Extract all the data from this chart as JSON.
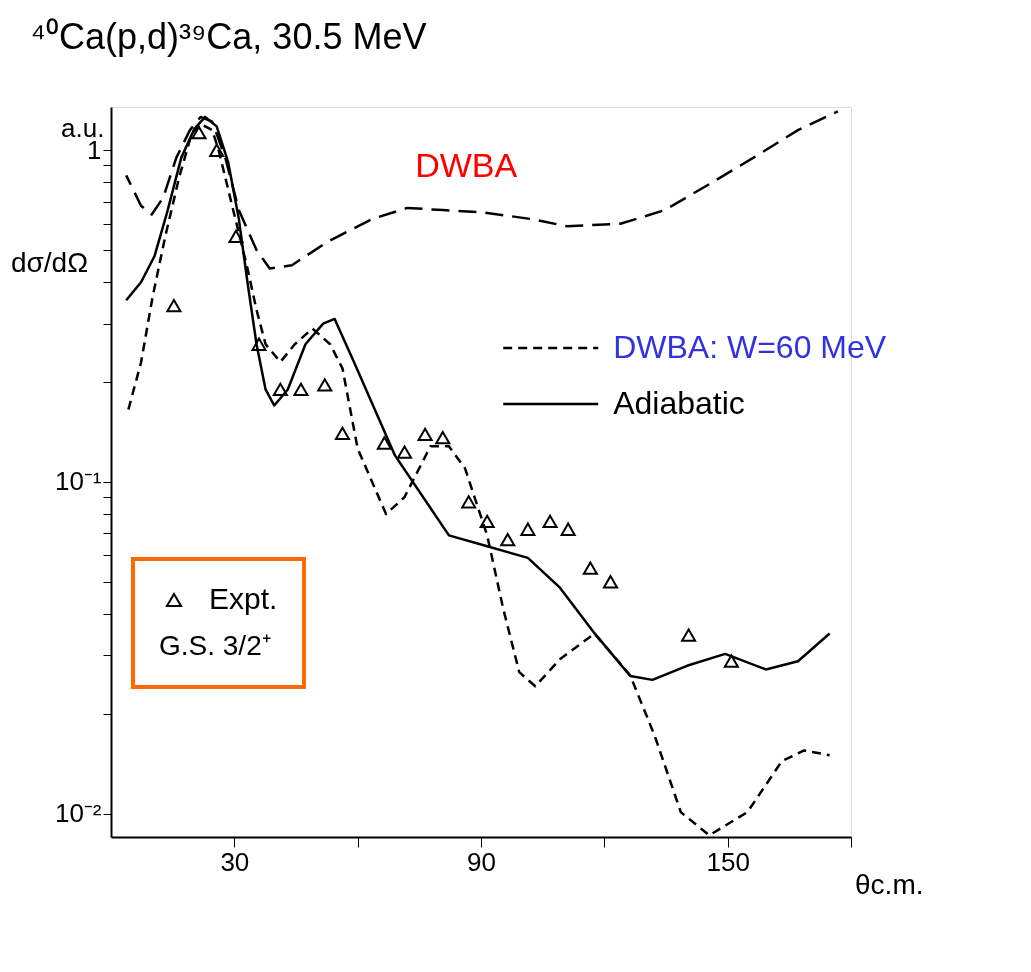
{
  "chart_data": {
    "type": "line",
    "title": "⁴⁰Ca(p,d)³⁹Ca, 30.5 MeV",
    "xlabel": "θc.m.",
    "ylabel": "dσ/dΩ",
    "legend_title": "G.S. 3/2⁺",
    "log": true,
    "grid": false,
    "legend": "right",
    "xlim": [
      0,
      180
    ],
    "xticks": [
      30,
      {
        "value": 60,
        "label": null
      },
      90,
      {
        "value": 120,
        "label": null
      },
      150,
      {
        "value": 180,
        "label": null
      }
    ],
    "ylim": [
      0.0085,
      1.35
    ],
    "yticks": [
      {
        "value": 1,
        "label": "1"
      },
      {
        "value": 0.1,
        "label": "10⁻¹"
      },
      {
        "value": 0.01,
        "label": "10⁻²"
      },
      {
        "value": 0.02,
        "label": null
      },
      {
        "value": 0.03,
        "label": null
      },
      {
        "value": 0.04,
        "label": null
      },
      {
        "value": 0.05,
        "label": null
      },
      {
        "value": 0.06,
        "label": null
      },
      {
        "value": 0.07,
        "label": null
      },
      {
        "value": 0.08,
        "label": null
      },
      {
        "value": 0.09,
        "label": null
      },
      {
        "value": 0.2,
        "label": null
      },
      {
        "value": 0.3,
        "label": null
      },
      {
        "value": 0.4,
        "label": null
      },
      {
        "value": 0.5,
        "label": null
      },
      {
        "value": 0.6,
        "label": null
      },
      {
        "value": 0.7,
        "label": null
      },
      {
        "value": 0.8,
        "label": null
      },
      {
        "value": 0.9,
        "label": null
      }
    ],
    "annotations": [
      "a.u.",
      "DWBA"
    ],
    "series": [
      {
        "color": "#000000",
        "line_style": "dashed",
        "x": [
          3.7,
          7.3,
          9.9,
          12.7,
          15.9,
          19.2,
          21.8,
          24.6,
          27.8,
          31.1,
          35.4,
          38.6,
          44.0,
          52.7,
          63.5,
          72.1,
          80.7,
          90.4,
          102.3,
          110.9,
          123.9,
          134.7,
          145.5,
          156.3,
          167.1,
          176.8
        ],
        "values": [
          0.84,
          0.68,
          0.64,
          0.72,
          0.95,
          1.15,
          1.26,
          1.22,
          0.95,
          0.66,
          0.5,
          0.44,
          0.45,
          0.53,
          0.62,
          0.67,
          0.66,
          0.65,
          0.62,
          0.59,
          0.6,
          0.66,
          0.79,
          0.95,
          1.15,
          1.31
        ]
      },
      {
        "name": "DWBA: W=60 MeV",
        "color": "#000000",
        "line_style": "dashed",
        "x": [
          4.1,
          7.3,
          10.1,
          13.2,
          16.6,
          19.6,
          21.8,
          24.6,
          26.1,
          29.6,
          33.2,
          35.4,
          37.6,
          41.2,
          44.7,
          49.0,
          53.3,
          56.3,
          60.0,
          66.9,
          71.4,
          77.7,
          82.2,
          86.1,
          91.5,
          95.4,
          99.3,
          103.2,
          109.2,
          117.6,
          126.3,
          132.3,
          138.6,
          145.5,
          154.8,
          163.2,
          168.6,
          174.8
        ],
        "values": [
          0.163,
          0.229,
          0.36,
          0.55,
          0.83,
          1.12,
          1.2,
          1.15,
          1.01,
          0.67,
          0.44,
          0.33,
          0.26,
          0.23,
          0.26,
          0.29,
          0.26,
          0.22,
          0.126,
          0.08,
          0.09,
          0.128,
          0.128,
          0.11,
          0.069,
          0.0415,
          0.0267,
          0.0242,
          0.0292,
          0.0349,
          0.0261,
          0.0171,
          0.0101,
          0.0086,
          0.0101,
          0.0144,
          0.0155,
          0.015
        ]
      },
      {
        "name": "Adiabatic",
        "color": "#000000",
        "line_style": "solid",
        "x": [
          3.7,
          7.3,
          10.6,
          13.8,
          17.1,
          20.3,
          22.9,
          25.7,
          28.5,
          31.1,
          33.2,
          35.4,
          37.6,
          39.7,
          43.0,
          47.3,
          51.6,
          54.4,
          59.1,
          69.1,
          82.2,
          91.5,
          101.4,
          109.2,
          117.6,
          126.3,
          131.7,
          140.1,
          149.4,
          159.3,
          167.1,
          174.8
        ],
        "values": [
          0.353,
          0.4,
          0.48,
          0.66,
          0.95,
          1.16,
          1.26,
          1.18,
          0.92,
          0.62,
          0.4,
          0.26,
          0.19,
          0.17,
          0.19,
          0.26,
          0.3,
          0.31,
          0.23,
          0.12,
          0.069,
          0.064,
          0.059,
          0.048,
          0.035,
          0.026,
          0.0253,
          0.0279,
          0.0303,
          0.0272,
          0.0288,
          0.0349
        ]
      },
      {
        "type": "scatter",
        "name": "Expt.",
        "color": "#000000",
        "marker": "triangle",
        "x": [
          15.3,
          21.4,
          25.7,
          30.4,
          36.0,
          41.2,
          46.2,
          52.0,
          56.3,
          66.5,
          71.4,
          76.4,
          80.7,
          87.0,
          91.5,
          96.5,
          101.4,
          106.8,
          111.2,
          116.6,
          121.5,
          140.5,
          150.9
        ],
        "values": [
          0.34,
          1.13,
          1.0,
          0.55,
          0.26,
          0.19,
          0.19,
          0.196,
          0.14,
          0.131,
          0.123,
          0.139,
          0.136,
          0.087,
          0.076,
          0.067,
          0.072,
          0.076,
          0.072,
          0.055,
          0.05,
          0.0345,
          0.0288
        ]
      }
    ]
  }
}
